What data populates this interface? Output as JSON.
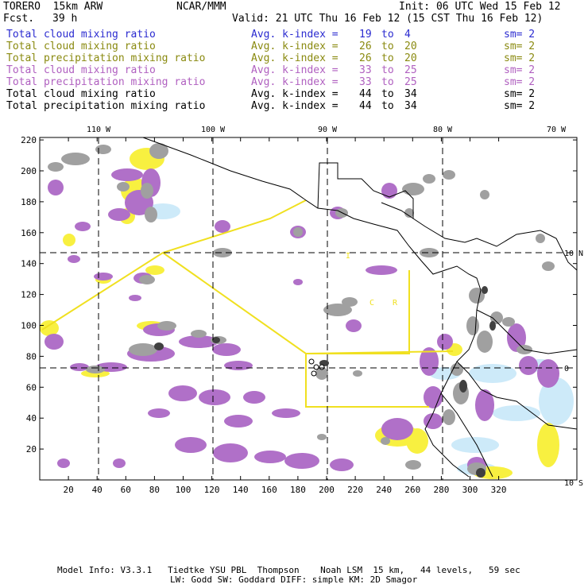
{
  "header": {
    "model": "TORERO  15km ARW",
    "org": "NCAR/MMM",
    "init": "Init: 06 UTC Wed 15 Feb 12",
    "fcst_label": "Fcst.",
    "fcst_value": "39 h",
    "valid": "Valid: 21 UTC Thu 16 Feb 12 (15 CST Thu 16 Feb 12)"
  },
  "legend": [
    {
      "field": "Total cloud mixing ratio",
      "kindex": "Avg. k-index =",
      "from": "19",
      "to_word": "to",
      "to": "4",
      "sm": "sm= 2",
      "color": "#2b2bd0"
    },
    {
      "field": "Total cloud mixing ratio",
      "kindex": "Avg. k-index =",
      "from": "26",
      "to_word": "to",
      "to": "20",
      "sm": "sm= 2",
      "color": "#8a8a10"
    },
    {
      "field": "Total precipitation mixing ratio",
      "kindex": "Avg. k-index =",
      "from": "26",
      "to_word": "to",
      "to": "20",
      "sm": "sm= 2",
      "color": "#8a8a10"
    },
    {
      "field": "Total cloud mixing ratio",
      "kindex": "Avg. k-index =",
      "from": "33",
      "to_word": "to",
      "to": "25",
      "sm": "sm= 2",
      "color": "#b060c0"
    },
    {
      "field": "Total precipitation mixing ratio",
      "kindex": "Avg. k-index =",
      "from": "33",
      "to_word": "to",
      "to": "25",
      "sm": "sm= 2",
      "color": "#b060c0"
    },
    {
      "field": "Total cloud mixing ratio",
      "kindex": "Avg. k-index =",
      "from": "44",
      "to_word": "to",
      "to": "34",
      "sm": "sm= 2",
      "color": "#000000"
    },
    {
      "field": "Total precipitation mixing ratio",
      "kindex": "Avg. k-index =",
      "from": "44",
      "to_word": "to",
      "to": "34",
      "sm": "sm= 2",
      "color": "#000000"
    }
  ],
  "map": {
    "grid_x_ticks": [
      "20",
      "40",
      "60",
      "80",
      "100",
      "120",
      "140",
      "160",
      "180",
      "200",
      "220",
      "240",
      "260",
      "280",
      "300",
      "320"
    ],
    "grid_y_ticks": [
      "220",
      "200",
      "180",
      "160",
      "140",
      "120",
      "100",
      "80",
      "60",
      "40",
      "20"
    ],
    "lon_labels": [
      "110 W",
      "100 W",
      "90 W",
      "80 W",
      "70 W"
    ],
    "lat_labels": [
      "10 N",
      "0",
      "10 S"
    ],
    "region_labels": [
      "I",
      "C",
      "R"
    ],
    "colors": {
      "coast": "#000000",
      "grid_dash": "#000000",
      "yellow_line": "#f0e020",
      "gray": "#a0a0a0",
      "dark_gray": "#404040",
      "purple": "#b070c8",
      "yellow_fill": "#f8f040",
      "light_blue": "#c8e8f8"
    }
  },
  "footer": {
    "line1": "Model Info: V3.3.1   Tiedtke YSU PBL  Thompson    Noah LSM  15 km,   44 levels,   59 sec",
    "line2": "LW: Godd SW: Goddard DIFF: simple KM: 2D Smagor"
  }
}
